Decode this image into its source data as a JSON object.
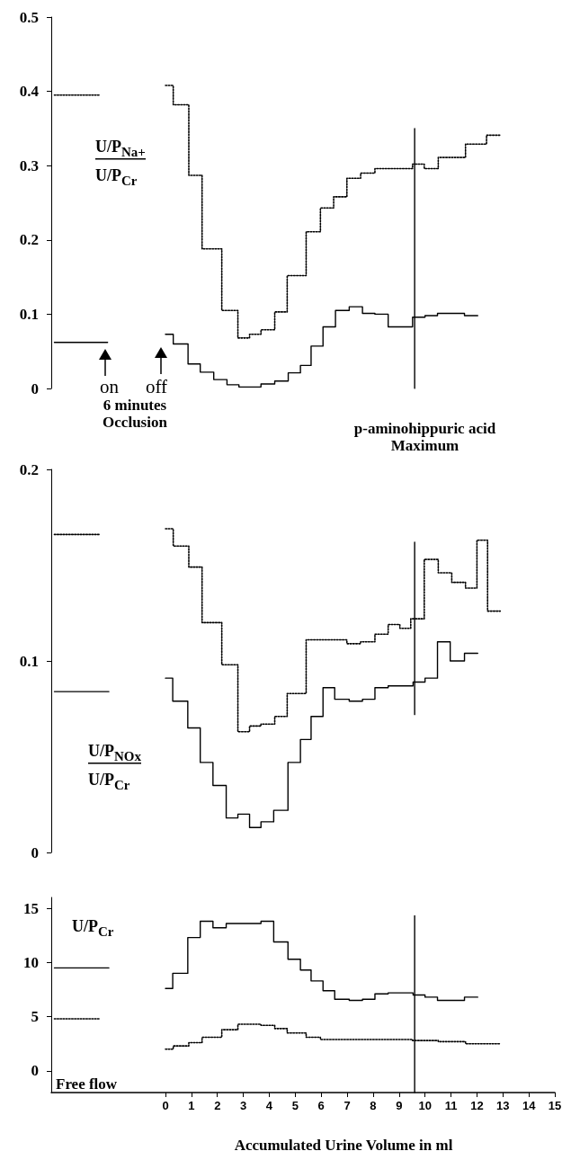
{
  "chart_data": [
    {
      "type": "step",
      "ylabel": "U/P$_{Na+}$\nU/P$_{Cr}$",
      "xlim": [
        -4.4,
        15
      ],
      "ylim": [
        0,
        0.5
      ],
      "yticks": [
        0,
        0.1,
        0.2,
        0.3,
        0.4,
        0.5
      ],
      "tick_labels": "y",
      "marker": "none",
      "annotations": [
        "on",
        "off",
        "6 minutes\nOcclusion",
        "p-aminohippuric acid\nMaximum"
      ],
      "series": [
        {
          "type": "line",
          "color": "#000000",
          "line_style": "dotted",
          "x": [
            -4.28,
            -2.51
          ],
          "values": [
            0.395,
            0.395
          ]
        },
        {
          "type": "line",
          "color": "#000000",
          "line_style": "solid",
          "x": [
            -4.28,
            -2.23
          ],
          "values": [
            0.062,
            0.062
          ]
        },
        {
          "color": "#000000",
          "line_style": "dotted",
          "x": [
            0,
            0.3,
            0.9,
            1.41,
            2.17,
            2.79,
            3.24,
            3.68,
            4.21,
            4.69,
            5.42,
            5.97,
            6.48,
            6.99,
            7.52,
            8.07,
            9.52,
            9.97,
            10.51,
            11.56,
            12.37,
            12.9
          ],
          "values": [
            0.408,
            0.382,
            0.287,
            0.188,
            0.105,
            0.068,
            0.073,
            0.079,
            0.103,
            0.152,
            0.211,
            0.243,
            0.258,
            0.283,
            0.29,
            0.296,
            0.302,
            0.296,
            0.311,
            0.329,
            0.341,
            0.341
          ]
        },
        {
          "color": "#000000",
          "line_style": "solid",
          "x": [
            0,
            0.3,
            0.87,
            1.34,
            1.86,
            2.37,
            2.83,
            3.68,
            4.21,
            4.73,
            5.2,
            5.61,
            6.07,
            6.55,
            7.08,
            7.59,
            8.07,
            8.58,
            9.52,
            10.0,
            10.48,
            11.52,
            12.03
          ],
          "values": [
            0.073,
            0.06,
            0.033,
            0.022,
            0.012,
            0.005,
            0.002,
            0.006,
            0.01,
            0.021,
            0.031,
            0.057,
            0.083,
            0.105,
            0.11,
            0.101,
            0.1,
            0.083,
            0.096,
            0.098,
            0.101,
            0.098,
            0.098
          ]
        },
        {
          "type": "line",
          "color": "#000000",
          "line_style": "solid",
          "x": [
            9.6,
            9.6
          ],
          "values": [
            0,
            0.35
          ]
        }
      ]
    },
    {
      "type": "step",
      "ylabel": "U/P$_{NOx}$\nU/P$_{Cr}$",
      "xlim": [
        -4.4,
        15
      ],
      "ylim": [
        0,
        0.2
      ],
      "yticks": [
        0,
        0.1,
        0.2
      ],
      "tick_labels": "y",
      "marker": "none",
      "series": [
        {
          "type": "line",
          "color": "#000000",
          "line_style": "dotted",
          "x": [
            -4.28,
            -2.55
          ],
          "values": [
            0.166,
            0.166
          ]
        },
        {
          "type": "line",
          "color": "#000000",
          "line_style": "solid",
          "x": [
            -4.28,
            -2.18
          ],
          "values": [
            0.084,
            0.084
          ]
        },
        {
          "color": "#000000",
          "line_style": "dotted",
          "x": [
            0,
            0.3,
            0.9,
            1.41,
            2.17,
            2.79,
            3.24,
            3.68,
            4.21,
            4.69,
            5.42,
            6.99,
            7.52,
            8.07,
            8.58,
            9.03,
            9.45,
            9.97,
            10.51,
            11.03,
            11.56,
            12.0,
            12.41,
            12.9
          ],
          "values": [
            0.169,
            0.16,
            0.149,
            0.12,
            0.098,
            0.063,
            0.066,
            0.067,
            0.071,
            0.083,
            0.111,
            0.109,
            0.11,
            0.114,
            0.119,
            0.117,
            0.122,
            0.153,
            0.146,
            0.141,
            0.138,
            0.163,
            0.126,
            0.126
          ]
        },
        {
          "color": "#000000",
          "line_style": "solid",
          "x": [
            0,
            0.28,
            0.86,
            1.34,
            1.83,
            2.34,
            2.79,
            3.24,
            3.68,
            4.17,
            4.72,
            5.2,
            5.61,
            6.07,
            6.52,
            7.08,
            7.59,
            8.07,
            8.58,
            9.54,
            10.0,
            10.48,
            10.97,
            11.52,
            12.03
          ],
          "values": [
            0.091,
            0.079,
            0.065,
            0.047,
            0.035,
            0.018,
            0.02,
            0.013,
            0.016,
            0.022,
            0.047,
            0.059,
            0.071,
            0.086,
            0.08,
            0.079,
            0.08,
            0.086,
            0.087,
            0.089,
            0.091,
            0.11,
            0.1,
            0.104,
            0.104
          ]
        },
        {
          "type": "line",
          "color": "#000000",
          "line_style": "solid",
          "x": [
            9.6,
            9.6
          ],
          "values": [
            0.072,
            0.162
          ]
        }
      ]
    },
    {
      "type": "step",
      "ylabel": "U/P$_{Cr}$",
      "xlabel": "Accumulated Urine Volume in ml",
      "xlim": [
        -4.4,
        15
      ],
      "xticks": [
        0,
        1,
        2,
        3,
        4,
        5,
        6,
        7,
        8,
        9,
        10,
        11,
        12,
        13,
        14,
        15
      ],
      "ylim": [
        -2,
        16
      ],
      "yticks": [
        0,
        5,
        10,
        15
      ],
      "marker": "none",
      "annotations": [
        "Free flow"
      ],
      "series": [
        {
          "type": "line",
          "color": "#000000",
          "line_style": "solid",
          "x": [
            -4.28,
            -2.18
          ],
          "values": [
            9.5,
            9.5
          ]
        },
        {
          "type": "line",
          "color": "#000000",
          "line_style": "dotted",
          "x": [
            -4.28,
            -2.51
          ],
          "values": [
            4.8,
            4.8
          ]
        },
        {
          "color": "#000000",
          "line_style": "solid",
          "x": [
            0,
            0.28,
            0.86,
            1.34,
            1.83,
            2.34,
            3.68,
            4.17,
            4.72,
            5.2,
            5.61,
            6.07,
            6.52,
            7.08,
            7.59,
            8.07,
            8.58,
            9.54,
            10.0,
            10.48,
            11.52,
            12.03
          ],
          "values": [
            7.6,
            9.0,
            12.3,
            13.8,
            13.2,
            13.6,
            13.8,
            11.9,
            10.3,
            9.3,
            8.3,
            7.4,
            6.6,
            6.5,
            6.6,
            7.1,
            7.2,
            7.0,
            6.8,
            6.5,
            6.8,
            6.8
          ]
        },
        {
          "color": "#000000",
          "line_style": "dotted",
          "x": [
            0,
            0.3,
            0.9,
            1.41,
            2.17,
            2.79,
            3.68,
            4.21,
            4.69,
            5.42,
            5.97,
            9.52,
            10.51,
            11.56,
            12.9
          ],
          "values": [
            2.0,
            2.3,
            2.6,
            3.1,
            3.8,
            4.3,
            4.2,
            3.9,
            3.5,
            3.1,
            2.9,
            2.8,
            2.7,
            2.5,
            2.5
          ]
        },
        {
          "type": "line",
          "color": "#000000",
          "line_style": "solid",
          "x": [
            9.6,
            9.6
          ],
          "values": [
            -2,
            14.3
          ]
        }
      ]
    }
  ]
}
